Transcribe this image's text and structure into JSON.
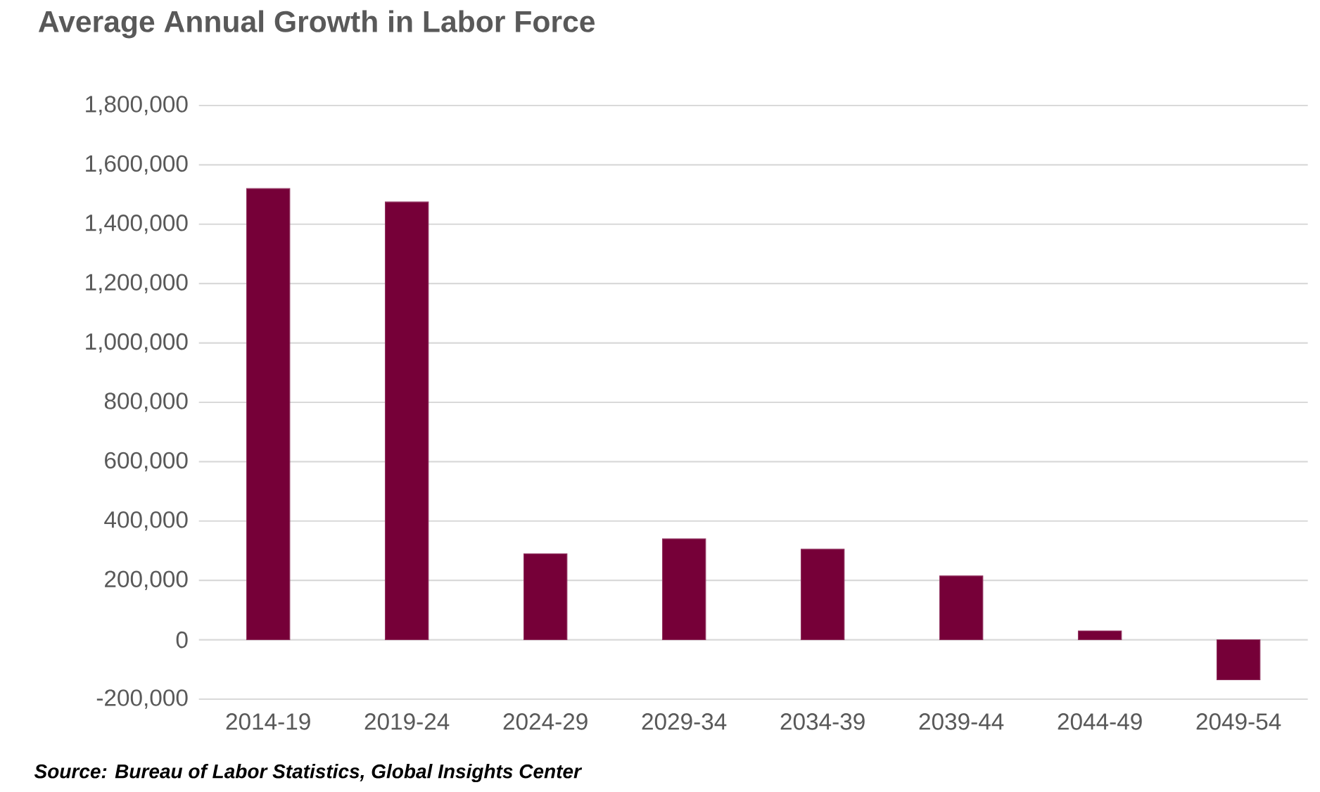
{
  "chart_data": {
    "type": "bar",
    "title": "Average Annual Growth in Labor Force",
    "categories": [
      "2014-19",
      "2019-24",
      "2024-29",
      "2029-34",
      "2034-39",
      "2039-44",
      "2044-49",
      "2049-54"
    ],
    "values": [
      1520000,
      1475000,
      290000,
      340000,
      305000,
      215000,
      30000,
      -135000
    ],
    "color": "#760038",
    "ylim": [
      -200000,
      1800000
    ],
    "yticks": [
      {
        "value": -200000,
        "label": "-200,000"
      },
      {
        "value": 0,
        "label": "0"
      },
      {
        "value": 200000,
        "label": "200,000"
      },
      {
        "value": 400000,
        "label": "400,000"
      },
      {
        "value": 600000,
        "label": "600,000"
      },
      {
        "value": 800000,
        "label": "800,000"
      },
      {
        "value": 1000000,
        "label": "1,000,000"
      },
      {
        "value": 1200000,
        "label": "1,200,000"
      },
      {
        "value": 1400000,
        "label": "1,400,000"
      },
      {
        "value": 1600000,
        "label": "1,600,000"
      },
      {
        "value": 1800000,
        "label": "1,800,000"
      }
    ],
    "grid": "y",
    "annotations": [
      "Source: Bureau of Labor Statistics, Global Insights Center"
    ]
  }
}
